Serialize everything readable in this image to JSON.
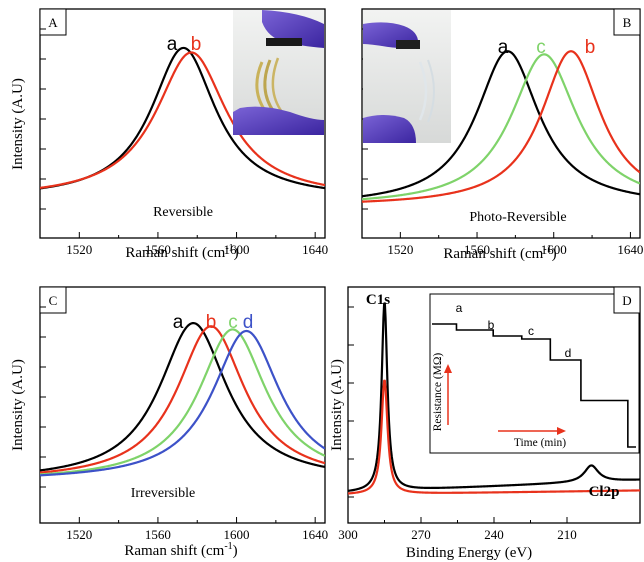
{
  "colors": {
    "a": "#000000",
    "b": "#e8321c",
    "c": "#7fd36a",
    "d": "#3d52c8",
    "arrow": "#e8321c"
  },
  "panels": {
    "A": {
      "label": "A",
      "annotation": "Reversible",
      "xlabel": "Raman shift (cm",
      "xlabel_sup": "-1",
      "xlabel_tail": ")",
      "ylabel": "Intensity (A.U)"
    },
    "B": {
      "label": "B",
      "annotation": "Photo-Reversible",
      "xlabel": "Raman shift (cm",
      "xlabel_sup": "-1",
      "xlabel_tail": ")"
    },
    "C": {
      "label": "C",
      "annotation": "Irreversible",
      "xlabel": "Raman shift (cm",
      "xlabel_sup": "-1",
      "xlabel_tail": ")",
      "ylabel": "Intensity (A.U)"
    },
    "D": {
      "label": "D",
      "xlabel": "Binding Energy (eV)",
      "ylabel": "Intensity (A.U)",
      "peak1": "C1s",
      "peak2": "Cl2p",
      "inset_ylabel": "Resistance (MΩ)",
      "inset_xlabel": "Time (min)"
    }
  },
  "photos": {
    "A": "photo-flexible-device-bent",
    "B": "photo-flexible-device-bent-clear"
  },
  "chart_data": [
    {
      "panel": "A",
      "type": "line",
      "xlabel": "Raman shift (cm-1)",
      "ylabel": "Intensity (A.U)",
      "xlim": [
        1500,
        1645
      ],
      "xticks": [
        1520,
        1560,
        1600,
        1640
      ],
      "series": [
        {
          "name": "a",
          "color": "#000000",
          "center": 1573,
          "width": 20,
          "amp": 1.0,
          "base": 0.06
        },
        {
          "name": "b",
          "color": "#e8321c",
          "center": 1577,
          "width": 22,
          "amp": 0.97,
          "base": 0.06
        }
      ]
    },
    {
      "panel": "B",
      "type": "line",
      "xlabel": "Raman shift (cm-1)",
      "xlim": [
        1500,
        1645
      ],
      "xticks": [
        1520,
        1560,
        1600,
        1640
      ],
      "series": [
        {
          "name": "a",
          "color": "#000000",
          "center": 1576,
          "width": 20,
          "amp": 1.0,
          "base": 0.05
        },
        {
          "name": "c",
          "color": "#7fd36a",
          "center": 1595,
          "width": 21,
          "amp": 0.98,
          "base": 0.05
        },
        {
          "name": "b",
          "color": "#e8321c",
          "center": 1609,
          "width": 19,
          "amp": 1.0,
          "base": 0.05
        }
      ]
    },
    {
      "panel": "C",
      "type": "line",
      "xlabel": "Raman shift (cm-1)",
      "ylabel": "Intensity (A.U)",
      "xlim": [
        1500,
        1645
      ],
      "xticks": [
        1520,
        1560,
        1600,
        1640
      ],
      "series": [
        {
          "name": "a",
          "color": "#000000",
          "center": 1578,
          "width": 21,
          "amp": 1.0,
          "base": 0.05
        },
        {
          "name": "b",
          "color": "#e8321c",
          "center": 1587,
          "width": 21,
          "amp": 0.98,
          "base": 0.05
        },
        {
          "name": "c",
          "color": "#7fd36a",
          "center": 1598,
          "width": 21,
          "amp": 0.96,
          "base": 0.05
        },
        {
          "name": "d",
          "color": "#3d52c8",
          "center": 1605,
          "width": 21,
          "amp": 0.95,
          "base": 0.05
        }
      ]
    },
    {
      "panel": "D",
      "type": "line",
      "xlabel": "Binding Energy (eV)",
      "ylabel": "Intensity (A.U)",
      "xlim": [
        300,
        180
      ],
      "xticks": [
        300,
        270,
        240,
        210
      ],
      "series": [
        {
          "name": "black",
          "color": "#000000",
          "baseline_left": 0.06,
          "baseline_right": 0.12,
          "peaks": [
            {
              "center": 285,
              "width": 1.4,
              "amp": 0.91
            },
            {
              "center": 200,
              "width": 3.5,
              "amp": 0.08
            }
          ]
        },
        {
          "name": "red",
          "color": "#e8321c",
          "baseline_left": 0.05,
          "baseline_right": 0.07,
          "peaks": [
            {
              "center": 285,
              "width": 1.5,
              "amp": 0.55
            }
          ]
        }
      ],
      "inset": {
        "type": "step",
        "xlabel": "Time (min)",
        "ylabel": "Resistance (MΩ)",
        "steps": [
          {
            "t": 0.0,
            "r": 0.84
          },
          {
            "t": 0.12,
            "r": 0.8
          },
          {
            "t": 0.3,
            "r": 0.76
          },
          {
            "t": 0.44,
            "r": 0.74
          },
          {
            "t": 0.58,
            "r": 0.6
          },
          {
            "t": 0.73,
            "r": 0.33
          },
          {
            "t": 0.96,
            "r": 0.02
          }
        ],
        "step_labels": [
          "a",
          "b",
          "c",
          "d"
        ]
      }
    }
  ]
}
